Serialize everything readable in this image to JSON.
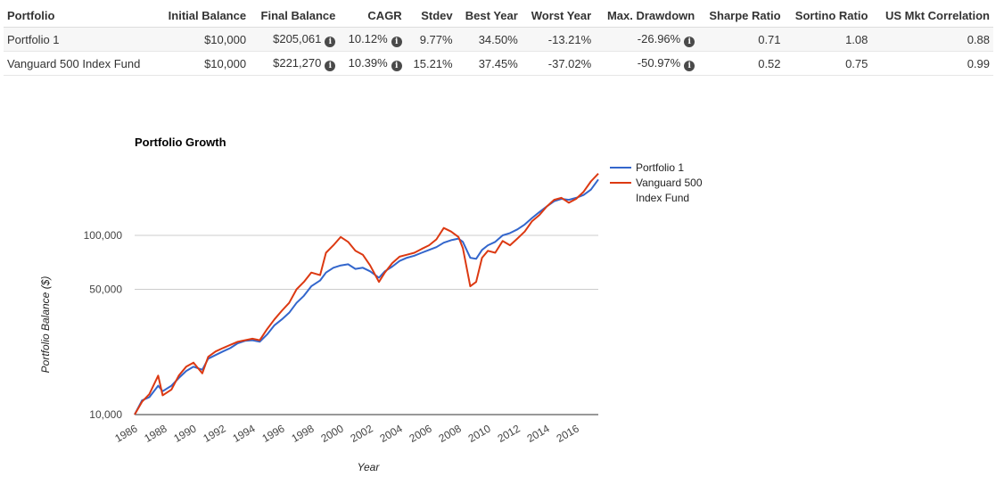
{
  "table": {
    "headers": [
      "Portfolio",
      "Initial Balance",
      "Final Balance",
      "CAGR",
      "Stdev",
      "Best Year",
      "Worst Year",
      "Max. Drawdown",
      "Sharpe Ratio",
      "Sortino Ratio",
      "US Mkt Correlation"
    ],
    "rows": [
      {
        "portfolio": "Portfolio 1",
        "initial": "$10,000",
        "final": "$205,061",
        "cagr": "10.12%",
        "stdev": "9.77%",
        "best": "34.50%",
        "worst": "-13.21%",
        "drawdown": "-26.96%",
        "sharpe": "0.71",
        "sortino": "1.08",
        "corr": "0.88"
      },
      {
        "portfolio": "Vanguard 500 Index Fund",
        "initial": "$10,000",
        "final": "$221,270",
        "cagr": "10.39%",
        "stdev": "15.21%",
        "best": "37.45%",
        "worst": "-37.02%",
        "drawdown": "-50.97%",
        "sharpe": "0.52",
        "sortino": "0.75",
        "corr": "0.99"
      }
    ],
    "info_icon": "info-circle-icon"
  },
  "chart_data": {
    "type": "line",
    "title": "Portfolio Growth",
    "xlabel": "Year",
    "ylabel": "Portfolio Balance ($)",
    "y_scale": "log",
    "ylim": [
      10000,
      250000
    ],
    "xlim": [
      1986,
      2017.5
    ],
    "x_ticks": [
      "1986",
      "1988",
      "1990",
      "1992",
      "1994",
      "1996",
      "1998",
      "2000",
      "2002",
      "2004",
      "2006",
      "2008",
      "2010",
      "2012",
      "2014",
      "2016"
    ],
    "y_ticks": [
      {
        "value": 10000,
        "label": "10,000"
      },
      {
        "value": 50000,
        "label": "50,000"
      },
      {
        "value": 100000,
        "label": "100,000"
      }
    ],
    "grid": true,
    "legend_position": "right",
    "series": [
      {
        "name": "Portfolio 1",
        "color": "#3366cc",
        "x": [
          1986,
          1986.5,
          1987,
          1987.6,
          1987.9,
          1988.5,
          1989,
          1989.5,
          1990,
          1990.6,
          1991,
          1991.5,
          1992,
          1992.5,
          1993,
          1993.5,
          1994,
          1994.5,
          1995,
          1995.5,
          1996,
          1996.5,
          1997,
          1997.5,
          1998,
          1998.6,
          1999,
          1999.5,
          2000,
          2000.5,
          2001,
          2001.5,
          2002,
          2002.6,
          2003,
          2003.5,
          2004,
          2004.5,
          2005,
          2005.5,
          2006,
          2006.5,
          2007,
          2007.5,
          2008,
          2008.3,
          2008.8,
          2009.2,
          2009.6,
          2010,
          2010.5,
          2011,
          2011.5,
          2012,
          2012.5,
          2013,
          2013.5,
          2014,
          2014.5,
          2015,
          2015.5,
          2016,
          2016.5,
          2017,
          2017.5
        ],
        "values": [
          10000,
          12000,
          12500,
          14500,
          13500,
          14500,
          16000,
          17500,
          18500,
          17800,
          20500,
          21500,
          22500,
          23500,
          25000,
          25800,
          26000,
          25500,
          28000,
          31500,
          34000,
          37000,
          42000,
          46000,
          52000,
          56000,
          62000,
          66000,
          68000,
          69000,
          65000,
          66000,
          63000,
          58000,
          63000,
          67000,
          72000,
          75000,
          77000,
          80000,
          83000,
          86000,
          91000,
          94000,
          96000,
          92000,
          75000,
          74000,
          83000,
          88000,
          92000,
          100000,
          103000,
          108000,
          115000,
          125000,
          135000,
          145000,
          155000,
          160000,
          158000,
          162000,
          168000,
          180000,
          205061
        ]
      },
      {
        "name": "Vanguard 500 Index Fund",
        "color": "#dc3912",
        "x": [
          1986,
          1986.5,
          1987,
          1987.6,
          1987.9,
          1988.5,
          1989,
          1989.5,
          1990,
          1990.6,
          1991,
          1991.5,
          1992,
          1992.5,
          1993,
          1993.5,
          1994,
          1994.5,
          1995,
          1995.5,
          1996,
          1996.5,
          1997,
          1997.5,
          1998,
          1998.6,
          1999,
          1999.5,
          2000,
          2000.5,
          2001,
          2001.5,
          2002,
          2002.6,
          2003,
          2003.5,
          2004,
          2004.5,
          2005,
          2005.5,
          2006,
          2006.5,
          2007,
          2007.5,
          2008,
          2008.3,
          2008.8,
          2009.2,
          2009.6,
          2010,
          2010.5,
          2011,
          2011.5,
          2012,
          2012.5,
          2013,
          2013.5,
          2014,
          2014.5,
          2015,
          2015.5,
          2016,
          2016.5,
          2017,
          2017.5
        ],
        "values": [
          10000,
          11800,
          13000,
          16500,
          12800,
          13800,
          16500,
          18500,
          19500,
          17000,
          21000,
          22500,
          23500,
          24500,
          25500,
          26000,
          26500,
          26000,
          30000,
          34000,
          38000,
          42000,
          50000,
          55000,
          62000,
          60000,
          80000,
          88000,
          98000,
          92000,
          82000,
          78000,
          68000,
          55000,
          62000,
          70000,
          76000,
          78000,
          80000,
          84000,
          88000,
          95000,
          110000,
          105000,
          98000,
          85000,
          52000,
          55000,
          75000,
          82000,
          80000,
          93000,
          88000,
          96000,
          105000,
          120000,
          130000,
          145000,
          158000,
          162000,
          152000,
          160000,
          175000,
          200000,
          221270
        ]
      }
    ]
  }
}
